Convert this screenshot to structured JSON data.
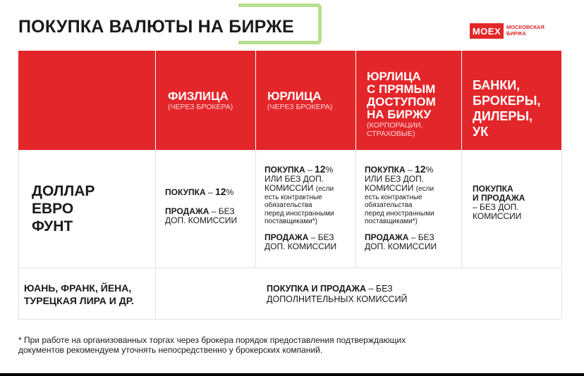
{
  "header": {
    "title": "ПОКУПКА ВАЛЮТЫ НА БИРЖЕ",
    "logo_text": "MOEX",
    "logo_sub_line1": "МОСКОВСКАЯ",
    "logo_sub_line2": "БИРЖА"
  },
  "columns": [
    {
      "main": "ФИЗЛИЦА",
      "sub": "(ЧЕРЕЗ БРОКЕРА)"
    },
    {
      "main": "ЮРЛИЦА",
      "sub": "(ЧЕРЕЗ БРОКЕРА)"
    },
    {
      "main_lines": [
        "ЮРЛИЦА",
        "С ПРЯМЫМ",
        "ДОСТУПОМ",
        "НА БИРЖУ"
      ],
      "sub_lines": [
        "(КОРПОРАЦИИ,",
        "СТРАХОВЫЕ)"
      ]
    },
    {
      "main_lines": [
        "БАНКИ,",
        "БРОКЕРЫ,",
        "ДИЛЕРЫ,",
        "УК"
      ]
    }
  ],
  "rows": [
    {
      "label_lines": [
        "ДОЛЛАР",
        "ЕВРО",
        "ФУНТ"
      ],
      "fiz": {
        "buy_label": "ПОКУПКА",
        "dash": " – ",
        "buy_value": "12",
        "pct": "%",
        "sell_label": "ПРОДАЖА",
        "sell_rest_1": " – БЕЗ",
        "sell_rest_2": "ДОП. КОМИССИИ"
      },
      "yur": {
        "buy_label": "ПОКУПКА",
        "dash": " – ",
        "buy_value": "12",
        "pct": "%",
        "alt_1": "ИЛИ БЕЗ ДОП.",
        "alt_2": "КОМИССИИ",
        "note_1": "(если",
        "note_2": "есть контрактные",
        "note_3": "обязательства",
        "note_4": "перед иностранными",
        "note_5": "поставщиками*)",
        "sell_label": "ПРОДАЖА",
        "sell_rest_1": " – БЕЗ",
        "sell_rest_2": "ДОП. КОМИССИИ"
      },
      "direct": {
        "buy_label": "ПОКУПКА",
        "dash": " – ",
        "buy_value": "12",
        "pct": "%",
        "alt_1": "ИЛИ БЕЗ ДОП.",
        "alt_2": "КОМИССИИ",
        "note_1": "(если",
        "note_2": "есть контрактные",
        "note_3": "обязательства",
        "note_4": "перед иностранными",
        "note_5": "поставщиками*)",
        "sell_label": "ПРОДАЖА",
        "sell_rest_1": " – БЕЗ",
        "sell_rest_2": "ДОП. КОМИССИИ"
      },
      "banks": {
        "line_1": "ПОКУПКА",
        "line_2": "И ПРОДАЖА",
        "line_3": "– БЕЗ ДОП.",
        "line_4": "КОМИССИИ"
      }
    },
    {
      "label_lines": [
        "ЮАНЬ, ФРАНК, ЙЕНА,",
        "ТУРЕЦКАЯ ЛИРА И ДР."
      ],
      "merged_bold": "ПОКУПКА И ПРОДАЖА",
      "merged_rest_1": " – БЕЗ",
      "merged_rest_2": "ДОПОЛНИТЕЛЬНЫХ КОМИССИЙ"
    }
  ],
  "footnote": {
    "line_1": "* При работе на организованных торгах через брокера порядок предоставления подтверждающих",
    "line_2": "документов рекомендуем уточнять непосредственно у брокерских компаний."
  }
}
